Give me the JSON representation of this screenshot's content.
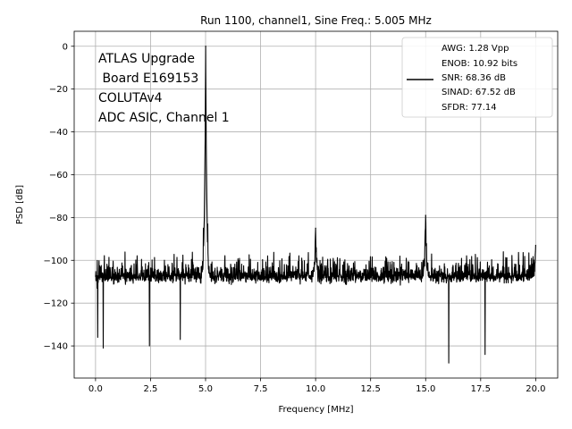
{
  "chart_data": {
    "type": "line",
    "title": "Run 1100, channel1, Sine Freq.: 5.005 MHz",
    "xlabel": "Frequency [MHz]",
    "ylabel": "PSD [dB]",
    "xlim": [
      -0.97,
      21.0
    ],
    "ylim": [
      -155,
      7
    ],
    "xticks": [
      0.0,
      2.5,
      5.0,
      7.5,
      10.0,
      12.5,
      15.0,
      17.5,
      20.0
    ],
    "xtick_labels": [
      "0.0",
      "2.5",
      "5.0",
      "7.5",
      "10.0",
      "12.5",
      "15.0",
      "17.5",
      "20.0"
    ],
    "yticks": [
      0,
      -20,
      -40,
      -60,
      -80,
      -100,
      -120,
      -140
    ],
    "ytick_labels": [
      "0",
      "−20",
      "−40",
      "−60",
      "−80",
      "−100",
      "−120",
      "−140"
    ],
    "grid": true,
    "legend_position": "top-right",
    "annotation_lines": [
      "ATLAS Upgrade",
      " Board E169153",
      "COLUTAv4",
      "ADC ASIC, Channel 1"
    ],
    "legend_lines": [
      "AWG: 1.28 Vpp",
      "ENOB: 10.92 bits",
      "SNR: 68.36 dB",
      "SINAD: 67.52 dB",
      "SFDR: 77.14"
    ],
    "series": [
      {
        "color": "#000000",
        "x_range": [
          0.0,
          20.0
        ],
        "noise_floor_db": -110,
        "noise_min_db": -148,
        "noise_max_db": -96,
        "peaks": [
          {
            "x": 5.005,
            "y": 0
          },
          {
            "x": 10.0,
            "y": -85
          },
          {
            "x": 15.0,
            "y": -79
          },
          {
            "x": 20.0,
            "y": -93
          }
        ],
        "deep_dips": [
          {
            "x": 0.1,
            "y": -136
          },
          {
            "x": 0.35,
            "y": -141
          },
          {
            "x": 2.45,
            "y": -140
          },
          {
            "x": 3.85,
            "y": -137
          },
          {
            "x": 16.05,
            "y": -148
          },
          {
            "x": 17.7,
            "y": -144
          }
        ]
      }
    ]
  }
}
